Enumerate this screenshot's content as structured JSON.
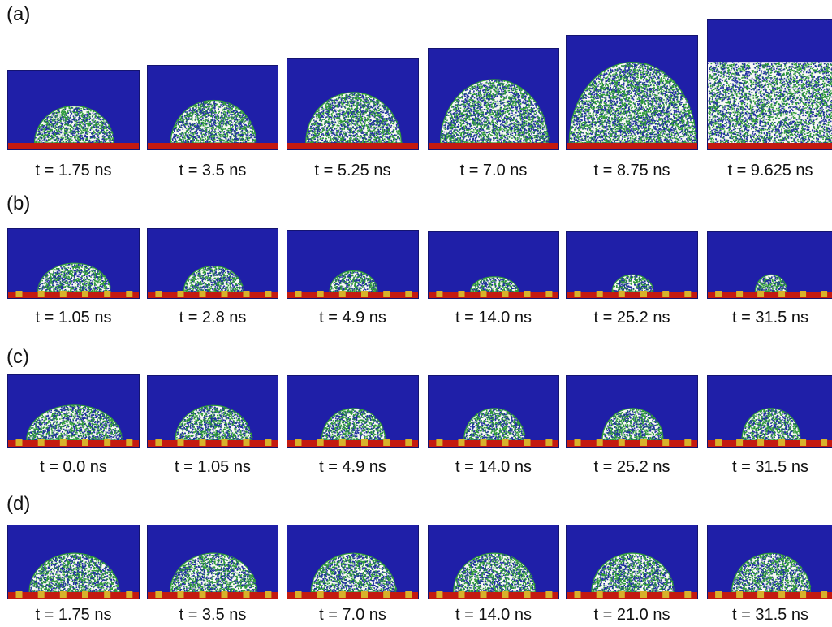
{
  "colors": {
    "water": "#1f1fa8",
    "substrate": "#c41a10",
    "pillar": "#d8b22a",
    "droplet": "#f6f8f4",
    "particle_green": "#2e9a3a",
    "particle_blue": "#1f2fa0"
  },
  "rows": [
    {
      "label": "(a)",
      "substrate": "flat",
      "panels": [
        {
          "time": "t = 1.75 ns",
          "droplet_width": 0.6,
          "droplet_height": 0.46
        },
        {
          "time": "t = 3.5 ns",
          "droplet_width": 0.65,
          "droplet_height": 0.5
        },
        {
          "time": "t = 5.25 ns",
          "droplet_width": 0.72,
          "droplet_height": 0.55
        },
        {
          "time": "t = 7.0 ns",
          "droplet_width": 0.82,
          "droplet_height": 0.62
        },
        {
          "time": "t = 8.75 ns",
          "droplet_width": 0.96,
          "droplet_height": 0.7
        },
        {
          "time": "t = 9.625 ns",
          "droplet_width": 1.0,
          "droplet_height": 0.62
        }
      ]
    },
    {
      "label": "(b)",
      "substrate": "pillared",
      "panels": [
        {
          "time": "t = 1.05 ns",
          "droplet_width": 0.55,
          "droplet_height": 0.4
        },
        {
          "time": "t = 2.8 ns",
          "droplet_width": 0.45,
          "droplet_height": 0.36
        },
        {
          "time": "t = 4.9 ns",
          "droplet_width": 0.36,
          "droplet_height": 0.3
        },
        {
          "time": "t = 14.0 ns",
          "droplet_width": 0.36,
          "droplet_height": 0.22
        },
        {
          "time": "t = 25.2 ns",
          "droplet_width": 0.31,
          "droplet_height": 0.25
        },
        {
          "time": "t = 31.5 ns",
          "droplet_width": 0.25,
          "droplet_height": 0.25
        }
      ]
    },
    {
      "label": "(c)",
      "substrate": "pillared",
      "panels": [
        {
          "time": "t = 0.0 ns",
          "droplet_width": 0.72,
          "droplet_height": 0.48
        },
        {
          "time": "t = 1.05 ns",
          "droplet_width": 0.58,
          "droplet_height": 0.48
        },
        {
          "time": "t = 4.9 ns",
          "droplet_width": 0.48,
          "droplet_height": 0.44
        },
        {
          "time": "t = 14.0 ns",
          "droplet_width": 0.46,
          "droplet_height": 0.44
        },
        {
          "time": "t = 25.2 ns",
          "droplet_width": 0.46,
          "droplet_height": 0.44
        },
        {
          "time": "t = 31.5 ns",
          "droplet_width": 0.46,
          "droplet_height": 0.44
        }
      ]
    },
    {
      "label": "(d)",
      "substrate": "pillared",
      "panels": [
        {
          "time": "t = 1.75 ns",
          "droplet_width": 0.68,
          "droplet_height": 0.52
        },
        {
          "time": "t = 3.5 ns",
          "droplet_width": 0.66,
          "droplet_height": 0.52
        },
        {
          "time": "t = 7.0 ns",
          "droplet_width": 0.64,
          "droplet_height": 0.52
        },
        {
          "time": "t = 14.0 ns",
          "droplet_width": 0.62,
          "droplet_height": 0.52
        },
        {
          "time": "t = 21.0 ns",
          "droplet_width": 0.62,
          "droplet_height": 0.52
        },
        {
          "time": "t = 31.5 ns",
          "droplet_width": 0.62,
          "droplet_height": 0.52
        }
      ]
    }
  ]
}
